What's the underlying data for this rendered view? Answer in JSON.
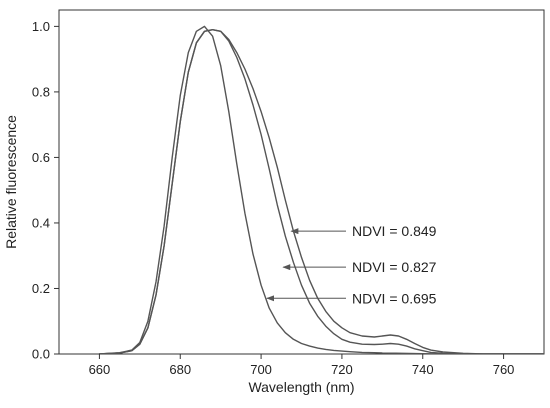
{
  "chart_data": {
    "type": "line",
    "xlabel": "Wavelength (nm)",
    "ylabel": "Relative fluorescence",
    "xlim": [
      650,
      770
    ],
    "ylim": [
      0,
      1.05
    ],
    "xticks": [
      660,
      680,
      700,
      720,
      740,
      760
    ],
    "yticks": [
      0.0,
      0.2,
      0.4,
      0.6,
      0.8,
      1.0
    ],
    "ytick_labels": [
      "0.0",
      "0.2",
      "0.4",
      "0.6",
      "0.8",
      "1.0"
    ],
    "grid": false,
    "line_color": "#555555",
    "series": [
      {
        "x": [
          660,
          665,
          668,
          670,
          672,
          674,
          676,
          678,
          680,
          682,
          684,
          686,
          688,
          690,
          692,
          694,
          696,
          698,
          700,
          702,
          704,
          706,
          708,
          710,
          712,
          714,
          716,
          718,
          720,
          722,
          725,
          728,
          730,
          732,
          734,
          736,
          738,
          740,
          742,
          745,
          750,
          755,
          760,
          770
        ],
        "y": [
          0.0,
          0.003,
          0.01,
          0.03,
          0.08,
          0.18,
          0.33,
          0.52,
          0.71,
          0.86,
          0.95,
          0.985,
          0.99,
          0.985,
          0.96,
          0.92,
          0.87,
          0.81,
          0.74,
          0.66,
          0.57,
          0.47,
          0.375,
          0.295,
          0.225,
          0.17,
          0.13,
          0.1,
          0.08,
          0.065,
          0.055,
          0.052,
          0.055,
          0.058,
          0.055,
          0.045,
          0.032,
          0.02,
          0.012,
          0.006,
          0.002,
          0.0,
          0.0,
          0.0
        ]
      },
      {
        "x": [
          660,
          665,
          668,
          670,
          672,
          674,
          676,
          678,
          680,
          682,
          684,
          686,
          688,
          690,
          692,
          694,
          696,
          698,
          700,
          702,
          704,
          706,
          708,
          710,
          712,
          714,
          716,
          718,
          720,
          722,
          725,
          728,
          730,
          732,
          734,
          736,
          738,
          740,
          742,
          745,
          750,
          755,
          760,
          770
        ],
        "y": [
          0.0,
          0.003,
          0.01,
          0.03,
          0.08,
          0.18,
          0.33,
          0.52,
          0.71,
          0.86,
          0.95,
          0.985,
          0.99,
          0.985,
          0.955,
          0.905,
          0.84,
          0.76,
          0.67,
          0.565,
          0.455,
          0.36,
          0.28,
          0.21,
          0.155,
          0.115,
          0.085,
          0.062,
          0.045,
          0.036,
          0.03,
          0.029,
          0.03,
          0.032,
          0.03,
          0.024,
          0.016,
          0.01,
          0.005,
          0.002,
          0.0,
          0.0,
          0.0,
          0.0
        ]
      },
      {
        "x": [
          660,
          665,
          668,
          670,
          672,
          674,
          676,
          678,
          680,
          682,
          684,
          686,
          688,
          690,
          692,
          694,
          696,
          698,
          700,
          702,
          704,
          706,
          708,
          710,
          712,
          714,
          716,
          718,
          720,
          722,
          725,
          728,
          730,
          735,
          740,
          745,
          750,
          770
        ],
        "y": [
          0.0,
          0.004,
          0.012,
          0.035,
          0.1,
          0.22,
          0.39,
          0.6,
          0.79,
          0.92,
          0.985,
          1.0,
          0.97,
          0.88,
          0.74,
          0.58,
          0.43,
          0.305,
          0.21,
          0.14,
          0.095,
          0.065,
          0.045,
          0.032,
          0.024,
          0.018,
          0.014,
          0.011,
          0.009,
          0.007,
          0.005,
          0.004,
          0.003,
          0.002,
          0.001,
          0.0,
          0.0,
          0.0
        ]
      }
    ],
    "annotations": [
      {
        "text": "NDVI = 0.849",
        "arrow_to": [
          707,
          0.375
        ]
      },
      {
        "text": "NDVI = 0.827",
        "arrow_to": [
          705,
          0.265
        ]
      },
      {
        "text": "NDVI = 0.695",
        "arrow_to": [
          701,
          0.17
        ]
      }
    ]
  }
}
